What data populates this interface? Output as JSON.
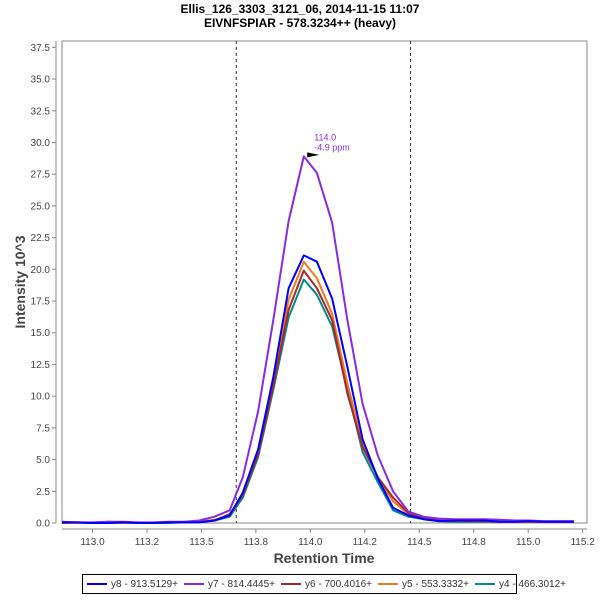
{
  "chart_data": {
    "type": "line",
    "title": "Ellis_126_3303_3121_06, 2014-11-15 11:07",
    "subtitle": "EIVNFSPIAR - 578.3234++ (heavy)",
    "xlabel": "Retention Time",
    "ylabel": "Intensity 10^3",
    "xlim": [
      112.86,
      115.27
    ],
    "ylim": [
      0,
      38.0
    ],
    "x_ticks": [
      113.0,
      113.25,
      113.5,
      113.75,
      114.0,
      114.25,
      114.5,
      114.75,
      115.0,
      115.25
    ],
    "x_tick_labels": [
      "113.0",
      "113.2",
      "113.5",
      "113.8",
      "114.0",
      "114.2",
      "114.5",
      "114.8",
      "115.0",
      "115.2"
    ],
    "y_ticks": [
      0.0,
      2.5,
      5.0,
      7.5,
      10.0,
      12.5,
      15.0,
      17.5,
      20.0,
      22.5,
      25.0,
      27.5,
      30.0,
      32.5,
      35.0,
      37.5
    ],
    "y_tick_labels": [
      "0.0",
      "2.5",
      "5.0",
      "7.5",
      "10.0",
      "12.5",
      "15.0",
      "17.5",
      "20.0",
      "22.5",
      "25.0",
      "27.5",
      "30.0",
      "32.5",
      "35.0",
      "37.5"
    ],
    "grid": false,
    "legend_position": "bottom",
    "boundaries": [
      113.66,
      114.46
    ],
    "annotation": {
      "x": 114.05,
      "y": 28.9,
      "lines": [
        "114.0",
        "-4.9 ppm"
      ],
      "color": "#8a2be2"
    },
    "x": [
      112.86,
      112.93,
      113.0,
      113.07,
      113.14,
      113.21,
      113.28,
      113.35,
      113.42,
      113.49,
      113.56,
      113.63,
      113.69,
      113.76,
      113.83,
      113.9,
      113.97,
      114.03,
      114.1,
      114.17,
      114.24,
      114.31,
      114.38,
      114.45,
      114.52,
      114.59,
      114.66,
      114.73,
      114.8,
      114.87,
      114.94,
      115.0,
      115.07,
      115.14,
      115.21
    ],
    "series": [
      {
        "name": "y8 - 913.5129+",
        "color": "#0000ff",
        "values": [
          0.05,
          0.05,
          0.0,
          0.0,
          0.05,
          0.0,
          0.0,
          0.05,
          0.05,
          0.05,
          0.2,
          0.6,
          2.4,
          5.8,
          11.5,
          18.5,
          21.1,
          20.6,
          17.7,
          12.3,
          6.6,
          3.5,
          1.2,
          0.6,
          0.3,
          0.15,
          0.2,
          0.2,
          0.2,
          0.1,
          0.1,
          0.15,
          0.1,
          0.1,
          0.1
        ]
      },
      {
        "name": "y7 - 814.4445+",
        "color": "#8a2be2",
        "values": [
          0.1,
          0.05,
          0.05,
          0.1,
          0.1,
          0.05,
          0.05,
          0.1,
          0.1,
          0.2,
          0.5,
          1.0,
          3.6,
          8.8,
          16.0,
          23.8,
          28.9,
          27.6,
          23.7,
          16.0,
          9.4,
          5.3,
          2.5,
          0.9,
          0.5,
          0.35,
          0.3,
          0.3,
          0.3,
          0.25,
          0.2,
          0.2,
          0.15,
          0.15,
          0.15
        ]
      },
      {
        "name": "y6 - 700.4016+",
        "color": "#a52a2a",
        "values": [
          0.0,
          0.05,
          0.0,
          0.1,
          0.05,
          0.0,
          0.0,
          0.05,
          0.05,
          0.1,
          0.2,
          0.7,
          2.2,
          5.4,
          10.8,
          16.8,
          19.9,
          18.5,
          16.0,
          10.2,
          6.0,
          3.6,
          2.0,
          0.8,
          0.4,
          0.2,
          0.15,
          0.15,
          0.15,
          0.1,
          0.1,
          0.1,
          0.1,
          0.1,
          0.1
        ]
      },
      {
        "name": "y5 - 553.3332+",
        "color": "#f07820",
        "values": [
          0.0,
          0.0,
          0.05,
          0.05,
          0.0,
          0.0,
          0.0,
          0.05,
          0.05,
          0.1,
          0.25,
          0.6,
          2.3,
          5.7,
          11.2,
          17.6,
          20.6,
          19.3,
          16.5,
          11.0,
          6.3,
          3.6,
          1.7,
          0.7,
          0.35,
          0.2,
          0.15,
          0.15,
          0.15,
          0.1,
          0.1,
          0.1,
          0.1,
          0.1,
          0.1
        ]
      },
      {
        "name": "y4 - 466.3012+",
        "color": "#008b8b",
        "values": [
          0.0,
          0.0,
          0.0,
          0.0,
          0.0,
          0.0,
          0.0,
          0.0,
          0.05,
          0.1,
          0.2,
          0.5,
          2.0,
          5.2,
          10.5,
          16.2,
          19.2,
          18.0,
          15.5,
          10.5,
          5.6,
          3.2,
          1.0,
          0.5,
          0.3,
          0.15,
          0.1,
          0.1,
          0.1,
          0.1,
          0.1,
          0.1,
          0.1,
          0.1,
          0.1
        ]
      }
    ]
  }
}
